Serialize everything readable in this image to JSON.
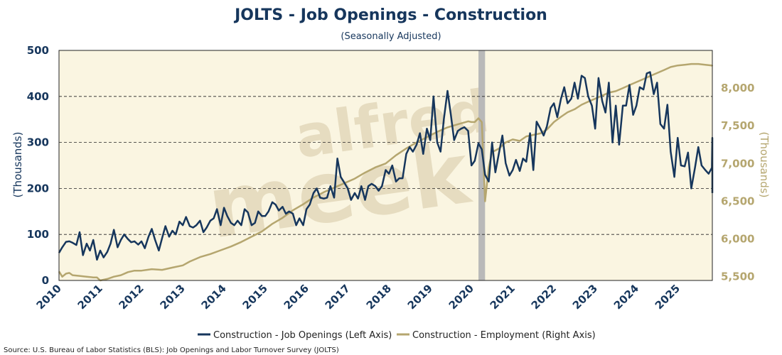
{
  "colors": {
    "plot_bg": "#faf5e1",
    "left_series": "#16365c",
    "right_series": "#b5a66f",
    "recession": "#b9b9b9",
    "grid": "#222222",
    "watermark": "#e6dcc0"
  },
  "watermark": {
    "line1": "alfred",
    "line2": "meek"
  },
  "chart_data": {
    "type": "line",
    "title": "JOLTS - Job Openings - Construction",
    "subtitle": "(Seasonally Adjusted)",
    "left_axis_label": "(Thousands)",
    "right_axis_label": "(Thousands)",
    "xlim": [
      2010.0,
      2025.84
    ],
    "left_ylim": [
      0,
      500
    ],
    "right_ylim": [
      5450,
      8500
    ],
    "left_ticks": [
      0,
      100,
      200,
      300,
      400,
      500
    ],
    "left_tick_labels": [
      "0",
      "100",
      "200",
      "300",
      "400",
      "500"
    ],
    "right_ticks": [
      5500,
      6000,
      6500,
      7000,
      7500,
      8000
    ],
    "right_tick_labels": [
      "5,500",
      "6,000",
      "6,500",
      "7,000",
      "7,500",
      "8,000"
    ],
    "x_ticks": [
      2010,
      2011,
      2012,
      2013,
      2014,
      2015,
      2016,
      2017,
      2018,
      2019,
      2020,
      2021,
      2022,
      2023,
      2024,
      2025
    ],
    "x_tick_labels": [
      "2010",
      "2011",
      "2012",
      "2013",
      "2014",
      "2015",
      "2016",
      "2017",
      "2018",
      "2019",
      "2020",
      "2021",
      "2022",
      "2023",
      "2024",
      "2025"
    ],
    "grid": "dashed horizontal at left-axis ticks",
    "recession_band": [
      2020.17,
      2020.33
    ],
    "legend": {
      "position": "bottom-center"
    },
    "series": [
      {
        "name": "Construction - Job Openings (Left Axis)",
        "axis": "left",
        "points": [
          [
            2010.0,
            60
          ],
          [
            2010.08,
            72
          ],
          [
            2010.17,
            84
          ],
          [
            2010.25,
            85
          ],
          [
            2010.33,
            82
          ],
          [
            2010.42,
            77
          ],
          [
            2010.5,
            105
          ],
          [
            2010.58,
            55
          ],
          [
            2010.67,
            80
          ],
          [
            2010.75,
            65
          ],
          [
            2010.83,
            88
          ],
          [
            2010.92,
            45
          ],
          [
            2011.0,
            65
          ],
          [
            2011.08,
            50
          ],
          [
            2011.17,
            62
          ],
          [
            2011.25,
            80
          ],
          [
            2011.33,
            110
          ],
          [
            2011.42,
            72
          ],
          [
            2011.5,
            88
          ],
          [
            2011.58,
            100
          ],
          [
            2011.67,
            90
          ],
          [
            2011.75,
            83
          ],
          [
            2011.83,
            85
          ],
          [
            2011.92,
            78
          ],
          [
            2012.0,
            85
          ],
          [
            2012.08,
            70
          ],
          [
            2012.17,
            95
          ],
          [
            2012.25,
            112
          ],
          [
            2012.33,
            88
          ],
          [
            2012.42,
            65
          ],
          [
            2012.5,
            92
          ],
          [
            2012.58,
            118
          ],
          [
            2012.67,
            95
          ],
          [
            2012.75,
            108
          ],
          [
            2012.83,
            100
          ],
          [
            2012.92,
            128
          ],
          [
            2013.0,
            120
          ],
          [
            2013.08,
            138
          ],
          [
            2013.17,
            118
          ],
          [
            2013.25,
            115
          ],
          [
            2013.33,
            120
          ],
          [
            2013.42,
            130
          ],
          [
            2013.5,
            105
          ],
          [
            2013.58,
            115
          ],
          [
            2013.67,
            130
          ],
          [
            2013.75,
            135
          ],
          [
            2013.83,
            155
          ],
          [
            2013.92,
            120
          ],
          [
            2014.0,
            158
          ],
          [
            2014.08,
            140
          ],
          [
            2014.17,
            125
          ],
          [
            2014.25,
            120
          ],
          [
            2014.33,
            130
          ],
          [
            2014.42,
            120
          ],
          [
            2014.5,
            155
          ],
          [
            2014.58,
            148
          ],
          [
            2014.67,
            120
          ],
          [
            2014.75,
            125
          ],
          [
            2014.83,
            150
          ],
          [
            2014.92,
            140
          ],
          [
            2015.0,
            140
          ],
          [
            2015.08,
            150
          ],
          [
            2015.17,
            170
          ],
          [
            2015.25,
            165
          ],
          [
            2015.33,
            152
          ],
          [
            2015.42,
            160
          ],
          [
            2015.5,
            145
          ],
          [
            2015.58,
            150
          ],
          [
            2015.67,
            145
          ],
          [
            2015.75,
            120
          ],
          [
            2015.83,
            135
          ],
          [
            2015.92,
            120
          ],
          [
            2016.0,
            155
          ],
          [
            2016.08,
            165
          ],
          [
            2016.17,
            190
          ],
          [
            2016.25,
            200
          ],
          [
            2016.33,
            180
          ],
          [
            2016.42,
            178
          ],
          [
            2016.5,
            180
          ],
          [
            2016.58,
            205
          ],
          [
            2016.67,
            180
          ],
          [
            2016.75,
            265
          ],
          [
            2016.83,
            225
          ],
          [
            2016.92,
            212
          ],
          [
            2017.0,
            200
          ],
          [
            2017.08,
            175
          ],
          [
            2017.17,
            190
          ],
          [
            2017.25,
            178
          ],
          [
            2017.33,
            205
          ],
          [
            2017.42,
            175
          ],
          [
            2017.5,
            205
          ],
          [
            2017.58,
            210
          ],
          [
            2017.67,
            205
          ],
          [
            2017.75,
            195
          ],
          [
            2017.83,
            205
          ],
          [
            2017.92,
            240
          ],
          [
            2018.0,
            232
          ],
          [
            2018.08,
            250
          ],
          [
            2018.17,
            215
          ],
          [
            2018.25,
            222
          ],
          [
            2018.33,
            222
          ],
          [
            2018.42,
            275
          ],
          [
            2018.5,
            290
          ],
          [
            2018.58,
            280
          ],
          [
            2018.67,
            295
          ],
          [
            2018.75,
            320
          ],
          [
            2018.83,
            275
          ],
          [
            2018.92,
            330
          ],
          [
            2019.0,
            305
          ],
          [
            2019.08,
            400
          ],
          [
            2019.17,
            300
          ],
          [
            2019.25,
            280
          ],
          [
            2019.33,
            350
          ],
          [
            2019.42,
            412
          ],
          [
            2019.5,
            360
          ],
          [
            2019.58,
            305
          ],
          [
            2019.67,
            325
          ],
          [
            2019.75,
            330
          ],
          [
            2019.83,
            333
          ],
          [
            2019.92,
            325
          ],
          [
            2020.0,
            250
          ],
          [
            2020.08,
            260
          ],
          [
            2020.17,
            298
          ],
          [
            2020.25,
            285
          ],
          [
            2020.33,
            230
          ],
          [
            2020.42,
            215
          ],
          [
            2020.5,
            300
          ],
          [
            2020.58,
            235
          ],
          [
            2020.67,
            278
          ],
          [
            2020.75,
            315
          ],
          [
            2020.83,
            255
          ],
          [
            2020.92,
            228
          ],
          [
            2021.0,
            240
          ],
          [
            2021.08,
            262
          ],
          [
            2021.17,
            238
          ],
          [
            2021.25,
            265
          ],
          [
            2021.33,
            258
          ],
          [
            2021.42,
            320
          ],
          [
            2021.5,
            240
          ],
          [
            2021.58,
            345
          ],
          [
            2021.67,
            330
          ],
          [
            2021.75,
            315
          ],
          [
            2021.83,
            335
          ],
          [
            2021.92,
            375
          ],
          [
            2022.0,
            385
          ],
          [
            2022.08,
            355
          ],
          [
            2022.17,
            395
          ],
          [
            2022.25,
            420
          ],
          [
            2022.33,
            385
          ],
          [
            2022.42,
            395
          ],
          [
            2022.5,
            430
          ],
          [
            2022.58,
            395
          ],
          [
            2022.67,
            445
          ],
          [
            2022.75,
            440
          ],
          [
            2022.83,
            400
          ],
          [
            2022.92,
            380
          ],
          [
            2023.0,
            330
          ],
          [
            2023.08,
            440
          ],
          [
            2023.17,
            390
          ],
          [
            2023.25,
            365
          ],
          [
            2023.33,
            430
          ],
          [
            2023.42,
            300
          ],
          [
            2023.5,
            380
          ],
          [
            2023.58,
            295
          ],
          [
            2023.67,
            380
          ],
          [
            2023.75,
            380
          ],
          [
            2023.83,
            425
          ],
          [
            2023.92,
            360
          ],
          [
            2024.0,
            380
          ],
          [
            2024.08,
            420
          ],
          [
            2024.17,
            415
          ],
          [
            2024.25,
            450
          ],
          [
            2024.33,
            453
          ],
          [
            2024.42,
            405
          ],
          [
            2024.5,
            430
          ],
          [
            2024.58,
            340
          ],
          [
            2024.67,
            330
          ],
          [
            2024.75,
            382
          ],
          [
            2024.83,
            280
          ],
          [
            2024.92,
            225
          ],
          [
            2025.0,
            310
          ],
          [
            2025.08,
            250
          ],
          [
            2025.17,
            248
          ],
          [
            2025.25,
            278
          ],
          [
            2025.33,
            200
          ],
          [
            2025.42,
            245
          ],
          [
            2025.5,
            290
          ],
          [
            2025.58,
            250
          ],
          [
            2025.67,
            240
          ],
          [
            2025.75,
            232
          ],
          [
            2025.83,
            245
          ],
          [
            2025.92,
            310
          ],
          [
            2026.0,
            190
          ]
        ]
      },
      {
        "name": "Construction - Employment (Right Axis)",
        "axis": "right",
        "points": [
          [
            2010.0,
            5570
          ],
          [
            2010.08,
            5500
          ],
          [
            2010.17,
            5540
          ],
          [
            2010.25,
            5550
          ],
          [
            2010.33,
            5520
          ],
          [
            2010.5,
            5510
          ],
          [
            2010.67,
            5500
          ],
          [
            2010.83,
            5490
          ],
          [
            2010.92,
            5490
          ],
          [
            2011.0,
            5450
          ],
          [
            2011.17,
            5470
          ],
          [
            2011.33,
            5500
          ],
          [
            2011.5,
            5520
          ],
          [
            2011.67,
            5560
          ],
          [
            2011.83,
            5580
          ],
          [
            2012.0,
            5580
          ],
          [
            2012.25,
            5600
          ],
          [
            2012.5,
            5590
          ],
          [
            2012.75,
            5620
          ],
          [
            2013.0,
            5650
          ],
          [
            2013.17,
            5700
          ],
          [
            2013.42,
            5760
          ],
          [
            2013.67,
            5800
          ],
          [
            2013.92,
            5850
          ],
          [
            2014.17,
            5900
          ],
          [
            2014.42,
            5960
          ],
          [
            2014.67,
            6030
          ],
          [
            2014.92,
            6100
          ],
          [
            2015.17,
            6200
          ],
          [
            2015.42,
            6280
          ],
          [
            2015.67,
            6380
          ],
          [
            2015.92,
            6460
          ],
          [
            2016.17,
            6550
          ],
          [
            2016.42,
            6620
          ],
          [
            2016.67,
            6680
          ],
          [
            2016.92,
            6740
          ],
          [
            2017.17,
            6800
          ],
          [
            2017.42,
            6880
          ],
          [
            2017.67,
            6950
          ],
          [
            2017.92,
            7000
          ],
          [
            2018.17,
            7110
          ],
          [
            2018.42,
            7200
          ],
          [
            2018.67,
            7280
          ],
          [
            2018.92,
            7350
          ],
          [
            2019.17,
            7420
          ],
          [
            2019.42,
            7480
          ],
          [
            2019.67,
            7520
          ],
          [
            2019.92,
            7560
          ],
          [
            2020.0,
            7550
          ],
          [
            2020.08,
            7550
          ],
          [
            2020.17,
            7600
          ],
          [
            2020.25,
            7550
          ],
          [
            2020.33,
            6500
          ],
          [
            2020.42,
            6950
          ],
          [
            2020.5,
            7150
          ],
          [
            2020.67,
            7200
          ],
          [
            2020.83,
            7280
          ],
          [
            2021.0,
            7320
          ],
          [
            2021.17,
            7300
          ],
          [
            2021.33,
            7360
          ],
          [
            2021.5,
            7380
          ],
          [
            2021.67,
            7400
          ],
          [
            2021.83,
            7450
          ],
          [
            2022.0,
            7550
          ],
          [
            2022.17,
            7620
          ],
          [
            2022.33,
            7680
          ],
          [
            2022.5,
            7720
          ],
          [
            2022.67,
            7780
          ],
          [
            2022.83,
            7820
          ],
          [
            2023.0,
            7860
          ],
          [
            2023.17,
            7900
          ],
          [
            2023.33,
            7940
          ],
          [
            2023.5,
            7960
          ],
          [
            2023.67,
            8000
          ],
          [
            2023.83,
            8040
          ],
          [
            2024.0,
            8080
          ],
          [
            2024.17,
            8120
          ],
          [
            2024.33,
            8160
          ],
          [
            2024.5,
            8200
          ],
          [
            2024.67,
            8240
          ],
          [
            2024.83,
            8280
          ],
          [
            2025.0,
            8300
          ],
          [
            2025.17,
            8310
          ],
          [
            2025.33,
            8320
          ],
          [
            2025.5,
            8320
          ],
          [
            2025.67,
            8310
          ],
          [
            2025.83,
            8300
          ],
          [
            2026.0,
            8290
          ]
        ]
      }
    ]
  },
  "source_text": "Source: U.S. Bureau of Labor Statistics (BLS): Job Openings and Labor Turnover Survey (JOLTS)"
}
